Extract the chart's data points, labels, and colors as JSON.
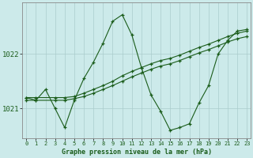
{
  "title": "Graphe pression niveau de la mer (hPa)",
  "bg_color": "#cceaea",
  "line_color": "#1a5c1a",
  "grid_color": "#aacccc",
  "x_ticks": [
    0,
    1,
    2,
    3,
    4,
    5,
    6,
    7,
    8,
    9,
    10,
    11,
    12,
    13,
    14,
    15,
    16,
    17,
    18,
    19,
    20,
    21,
    22,
    23
  ],
  "y_ticks": [
    1021,
    1022
  ],
  "ylim": [
    1020.45,
    1022.95
  ],
  "xlim": [
    -0.4,
    23.4
  ],
  "series1": {
    "x": [
      0,
      1,
      3,
      4,
      5,
      6,
      7,
      8,
      9,
      10,
      11,
      12,
      13,
      14,
      15,
      16,
      17,
      18,
      19,
      20,
      21,
      22,
      23
    ],
    "y": [
      1021.15,
      1021.15,
      1021.15,
      1021.15,
      1021.18,
      1021.22,
      1021.28,
      1021.35,
      1021.42,
      1021.5,
      1021.58,
      1021.65,
      1021.72,
      1021.78,
      1021.82,
      1021.88,
      1021.95,
      1022.02,
      1022.08,
      1022.15,
      1022.22,
      1022.28,
      1022.32
    ]
  },
  "series2": {
    "x": [
      0,
      1,
      3,
      4,
      5,
      6,
      7,
      8,
      9,
      10,
      11,
      12,
      13,
      14,
      15,
      16,
      17,
      18,
      19,
      20,
      21,
      22,
      23
    ],
    "y": [
      1021.2,
      1021.2,
      1021.2,
      1021.2,
      1021.22,
      1021.28,
      1021.35,
      1021.42,
      1021.5,
      1021.6,
      1021.68,
      1021.75,
      1021.82,
      1021.88,
      1021.92,
      1021.98,
      1022.05,
      1022.12,
      1022.18,
      1022.25,
      1022.32,
      1022.38,
      1022.42
    ]
  },
  "series3": {
    "x": [
      0,
      1,
      2,
      3,
      4,
      5,
      6,
      7,
      8,
      9,
      10,
      11,
      12,
      13,
      14,
      15,
      16,
      17,
      18,
      19,
      20,
      21,
      22,
      23
    ],
    "y": [
      1021.2,
      1021.15,
      1021.35,
      1021.0,
      1020.65,
      1021.15,
      1021.55,
      1021.85,
      1022.2,
      1022.6,
      1022.72,
      1022.35,
      1021.75,
      1021.25,
      1020.95,
      1020.6,
      1020.65,
      1020.72,
      1021.1,
      1021.42,
      1022.0,
      1022.25,
      1022.42,
      1022.45
    ]
  }
}
